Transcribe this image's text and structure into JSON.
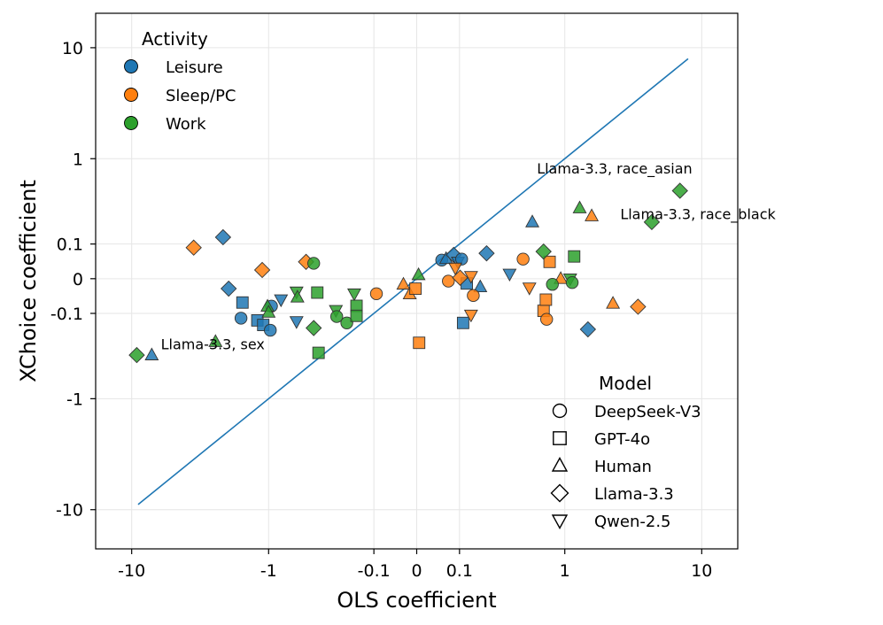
{
  "chart_data": {
    "type": "scatter",
    "xlabel": "OLS coefficient",
    "ylabel": "XChoice coefficient",
    "xscale": "symlog",
    "yscale": "symlog",
    "x_ticks": [
      {
        "v": -10,
        "label": "-10"
      },
      {
        "v": -1,
        "label": "-1"
      },
      {
        "v": -0.1,
        "label": "-0.1"
      },
      {
        "v": 0,
        "label": "0"
      },
      {
        "v": 0.1,
        "label": "0.1"
      },
      {
        "v": 1,
        "label": "1"
      },
      {
        "v": 10,
        "label": "10"
      }
    ],
    "y_ticks": [
      {
        "v": 10,
        "label": "10"
      },
      {
        "v": 1,
        "label": "1"
      },
      {
        "v": 0.1,
        "label": "0.1"
      },
      {
        "v": 0,
        "label": "0"
      },
      {
        "v": -0.1,
        "label": "-0.1"
      },
      {
        "v": -1,
        "label": "-1"
      },
      {
        "v": -10,
        "label": "-10"
      }
    ],
    "xlim": [
      -18,
      18
    ],
    "ylim": [
      -22,
      20
    ],
    "reference_line": {
      "from": -9,
      "to": 8,
      "color": "#1f77b4"
    },
    "activity_legend": {
      "title": "Activity",
      "location": "top-left",
      "entries": [
        {
          "label": "Leisure",
          "color": "#1f77b4"
        },
        {
          "label": "Sleep/PC",
          "color": "#ff7f0e"
        },
        {
          "label": "Work",
          "color": "#2ca02c"
        }
      ]
    },
    "model_legend": {
      "title": "Model",
      "location": "bottom-right",
      "entries": [
        {
          "label": "DeepSeek-V3",
          "marker": "circle"
        },
        {
          "label": "GPT-4o",
          "marker": "square"
        },
        {
          "label": "Human",
          "marker": "triangle-up"
        },
        {
          "label": "Llama-3.3",
          "marker": "diamond"
        },
        {
          "label": "Qwen-2.5",
          "marker": "triangle-down"
        }
      ]
    },
    "annotations": [
      {
        "text": "Llama-3.3, race_asian",
        "x": 0.6,
        "y": 0.72
      },
      {
        "text": "Llama-3.3, race_black",
        "x": 2.6,
        "y": 0.23
      },
      {
        "text": "Llama-3.3, sex",
        "x": -6.2,
        "y": -0.31
      }
    ],
    "points": [
      {
        "x": -2.2,
        "y": 0.129,
        "m": "diamond",
        "a": "Leisure"
      },
      {
        "x": -2.0,
        "y": -0.022,
        "m": "diamond",
        "a": "Leisure"
      },
      {
        "x": -1.58,
        "y": -0.061,
        "m": "square",
        "a": "Leisure"
      },
      {
        "x": -1.62,
        "y": -0.12,
        "m": "circle",
        "a": "Leisure"
      },
      {
        "x": -1.22,
        "y": -0.13,
        "m": "square",
        "a": "Leisure"
      },
      {
        "x": -1.1,
        "y": -0.152,
        "m": "square",
        "a": "Leisure"
      },
      {
        "x": -0.95,
        "y": -0.073,
        "m": "circle",
        "a": "Leisure"
      },
      {
        "x": -0.97,
        "y": -0.18,
        "m": "circle",
        "a": "Leisure"
      },
      {
        "x": -0.8,
        "y": -0.052,
        "m": "triangle-down",
        "a": "Leisure"
      },
      {
        "x": -0.6,
        "y": -0.135,
        "m": "triangle-down",
        "a": "Leisure"
      },
      {
        "x": 0.05,
        "y": 0.045,
        "m": "circle",
        "a": "Leisure"
      },
      {
        "x": 0.061,
        "y": 0.049,
        "m": "triangle-up",
        "a": "Leisure"
      },
      {
        "x": 0.082,
        "y": 0.061,
        "m": "diamond",
        "a": "Leisure"
      },
      {
        "x": 0.095,
        "y": 0.04,
        "m": "triangle-down",
        "a": "Leisure"
      },
      {
        "x": 0.107,
        "y": 0.048,
        "m": "circle",
        "a": "Leisure"
      },
      {
        "x": 0.125,
        "y": -0.01,
        "m": "square",
        "a": "Leisure"
      },
      {
        "x": 0.112,
        "y": -0.142,
        "m": "square",
        "a": "Leisure"
      },
      {
        "x": 0.18,
        "y": -0.018,
        "m": "triangle-up",
        "a": "Leisure"
      },
      {
        "x": 0.21,
        "y": 0.066,
        "m": "diamond",
        "a": "Leisure"
      },
      {
        "x": 0.35,
        "y": 0.01,
        "m": "triangle-down",
        "a": "Leisure"
      },
      {
        "x": 0.55,
        "y": 0.21,
        "m": "triangle-up",
        "a": "Leisure"
      },
      {
        "x": 1.5,
        "y": -0.175,
        "m": "diamond",
        "a": "Leisure"
      },
      {
        "x": -7.2,
        "y": -0.36,
        "m": "triangle-up",
        "a": "Leisure"
      },
      {
        "x": -3.6,
        "y": 0.086,
        "m": "diamond",
        "a": "Sleep/PC"
      },
      {
        "x": -1.12,
        "y": 0.019,
        "m": "diamond",
        "a": "Sleep/PC"
      },
      {
        "x": -0.5,
        "y": 0.04,
        "m": "diamond",
        "a": "Sleep/PC"
      },
      {
        "x": -0.092,
        "y": -0.035,
        "m": "circle",
        "a": "Sleep/PC"
      },
      {
        "x": -0.024,
        "y": -0.012,
        "m": "triangle-up",
        "a": "Sleep/PC"
      },
      {
        "x": -0.012,
        "y": -0.036,
        "m": "triangle-up",
        "a": "Sleep/PC"
      },
      {
        "x": -0.002,
        "y": -0.022,
        "m": "square",
        "a": "Sleep/PC"
      },
      {
        "x": 0.004,
        "y": -0.26,
        "m": "square",
        "a": "Sleep/PC"
      },
      {
        "x": 0.067,
        "y": -0.005,
        "m": "circle",
        "a": "Sleep/PC"
      },
      {
        "x": 0.087,
        "y": 0.024,
        "m": "triangle-down",
        "a": "Sleep/PC"
      },
      {
        "x": 0.102,
        "y": 0.002,
        "m": "diamond",
        "a": "Sleep/PC"
      },
      {
        "x": 0.141,
        "y": 0.005,
        "m": "triangle-down",
        "a": "Sleep/PC"
      },
      {
        "x": 0.141,
        "y": -0.106,
        "m": "triangle-down",
        "a": "Sleep/PC"
      },
      {
        "x": 0.15,
        "y": -0.04,
        "m": "circle",
        "a": "Sleep/PC"
      },
      {
        "x": 0.46,
        "y": 0.048,
        "m": "circle",
        "a": "Sleep/PC"
      },
      {
        "x": 0.52,
        "y": -0.02,
        "m": "triangle-down",
        "a": "Sleep/PC"
      },
      {
        "x": 0.68,
        "y": -0.09,
        "m": "square",
        "a": "Sleep/PC"
      },
      {
        "x": 0.71,
        "y": -0.052,
        "m": "square",
        "a": "Sleep/PC"
      },
      {
        "x": 0.72,
        "y": -0.125,
        "m": "circle",
        "a": "Sleep/PC"
      },
      {
        "x": 0.76,
        "y": 0.04,
        "m": "square",
        "a": "Sleep/PC"
      },
      {
        "x": 0.93,
        "y": 0.0,
        "m": "triangle-up",
        "a": "Sleep/PC"
      },
      {
        "x": 1.6,
        "y": 0.25,
        "m": "triangle-up",
        "a": "Sleep/PC"
      },
      {
        "x": 2.3,
        "y": -0.064,
        "m": "triangle-up",
        "a": "Sleep/PC"
      },
      {
        "x": 3.5,
        "y": -0.075,
        "m": "diamond",
        "a": "Sleep/PC"
      },
      {
        "x": -9.2,
        "y": -0.36,
        "m": "diamond",
        "a": "Work"
      },
      {
        "x": -2.5,
        "y": -0.252,
        "m": "triangle-up",
        "a": "Work"
      },
      {
        "x": -1.02,
        "y": -0.074,
        "m": "triangle-up",
        "a": "Work"
      },
      {
        "x": -1.0,
        "y": -0.096,
        "m": "triangle-up",
        "a": "Work"
      },
      {
        "x": -0.6,
        "y": -0.03,
        "m": "triangle-down",
        "a": "Work"
      },
      {
        "x": -0.59,
        "y": -0.045,
        "m": "triangle-up",
        "a": "Work"
      },
      {
        "x": -0.43,
        "y": 0.036,
        "m": "circle",
        "a": "Work"
      },
      {
        "x": -0.43,
        "y": -0.168,
        "m": "diamond",
        "a": "Work"
      },
      {
        "x": -0.4,
        "y": -0.032,
        "m": "square",
        "a": "Work"
      },
      {
        "x": -0.39,
        "y": -0.34,
        "m": "square",
        "a": "Work"
      },
      {
        "x": -0.27,
        "y": -0.088,
        "m": "triangle-down",
        "a": "Work"
      },
      {
        "x": -0.265,
        "y": -0.113,
        "m": "circle",
        "a": "Work"
      },
      {
        "x": -0.21,
        "y": -0.142,
        "m": "circle",
        "a": "Work"
      },
      {
        "x": -0.175,
        "y": -0.035,
        "m": "triangle-down",
        "a": "Work"
      },
      {
        "x": -0.165,
        "y": -0.072,
        "m": "square",
        "a": "Work"
      },
      {
        "x": -0.165,
        "y": -0.11,
        "m": "square",
        "a": "Work"
      },
      {
        "x": 0.003,
        "y": 0.008,
        "m": "triangle-up",
        "a": "Work"
      },
      {
        "x": 0.68,
        "y": 0.072,
        "m": "diamond",
        "a": "Work"
      },
      {
        "x": 0.8,
        "y": -0.012,
        "m": "circle",
        "a": "Work"
      },
      {
        "x": 1.1,
        "y": 0.0,
        "m": "triangle-down",
        "a": "Work"
      },
      {
        "x": 1.14,
        "y": -0.008,
        "m": "circle",
        "a": "Work"
      },
      {
        "x": 1.18,
        "y": 0.056,
        "m": "square",
        "a": "Work"
      },
      {
        "x": 1.3,
        "y": 0.31,
        "m": "triangle-up",
        "a": "Work"
      },
      {
        "x": 4.4,
        "y": 0.21,
        "m": "diamond",
        "a": "Work"
      },
      {
        "x": 7.0,
        "y": 0.48,
        "m": "diamond",
        "a": "Work"
      }
    ]
  }
}
